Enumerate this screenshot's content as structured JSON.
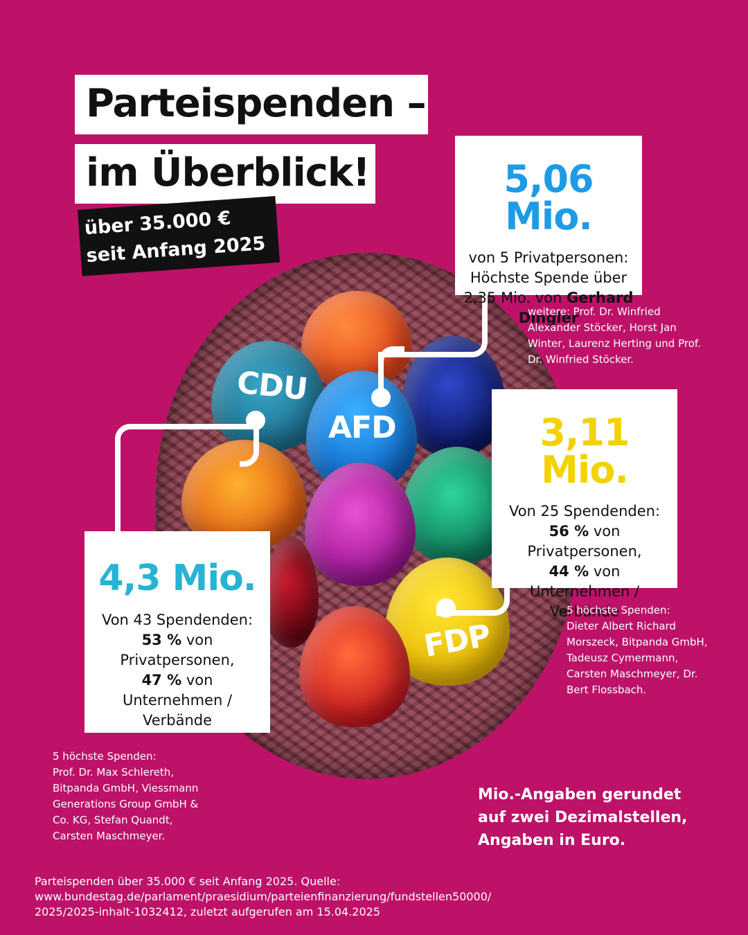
{
  "colors": {
    "background": "#bd1268",
    "afd_amount": "#1e9be6",
    "fdp_amount": "#f2d200",
    "cdu_amount": "#27b3d2",
    "box": "#ffffff"
  },
  "title": {
    "line1": "Parteispenden –",
    "line2": "im Überblick!",
    "tag_line1": "über 35.000 €",
    "tag_line2": "seit Anfang 2025"
  },
  "eggs": {
    "cdu": "CDU",
    "afd": "AFD",
    "fdp": "FDP"
  },
  "afd": {
    "amount": "5,06 Mio.",
    "desc_line1": "von 5 Privatpersonen:",
    "desc_line2": "Höchste Spende über",
    "desc_line3": "2,35 Mio. von",
    "desc_bold": "Gerhard",
    "desc_bold2": "Dingler",
    "more": "weitere: Prof. Dr. Winfried\nAlexander Stöcker, Horst Jan\nWinter, Laurenz Herting und Prof.\nDr. Winfried Stöcker."
  },
  "fdp": {
    "amount": "3,11 Mio.",
    "line1": "Von 25 Spendenden:",
    "pct1": "56 %",
    "line2": "von",
    "line3": "Privatpersonen,",
    "pct2": "44 %",
    "line4": "von",
    "line5": "Unternehmen /",
    "line6": "Verbände",
    "top5": "5 höchste Spenden:\nDieter Albert Richard\nMorszeck, Bitpanda GmbH,\nTadeusz Cymermann,\nCarsten Maschmeyer, Dr.\nBert Flossbach."
  },
  "cdu": {
    "amount": "4,3 Mio.",
    "line1": "Von 43 Spendenden:",
    "pct1": "53 %",
    "line2": "von",
    "line3": "Privatpersonen,",
    "pct2": "47 %",
    "line4": "von",
    "line5": "Unternehmen /",
    "line6": "Verbände",
    "top5": "5 höchste Spenden:\nProf. Dr. Max Schlereth,\nBitpanda GmbH, Viessmann\nGenerations Group GmbH &\nCo. KG, Stefan Quandt,\nCarsten Maschmeyer."
  },
  "notes": {
    "rounding_l1": "Mio.-Angaben gerundet",
    "rounding_l2": "auf zwei Dezimalstellen,",
    "rounding_l3": "Angaben in Euro.",
    "source_l1": "Parteispenden über 35.000 € seit Anfang 2025. Quelle:",
    "source_l2": "www.bundestag.de/parlament/praesidium/parteienfinanzierung/fundstellen50000/",
    "source_l3": "2025/2025-inhalt-1032412, zuletzt aufgerufen am 15.04.2025"
  }
}
